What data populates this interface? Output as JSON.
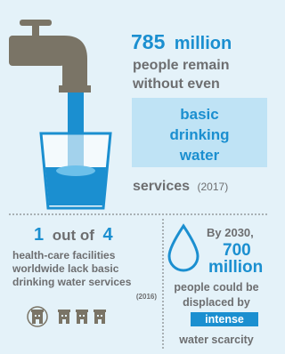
{
  "top": {
    "number": "785",
    "unit": "million",
    "line1": "people remain",
    "line2": "without even",
    "highlight": [
      "basic",
      "drinking",
      "water"
    ],
    "line3": "services",
    "year": "(2017)"
  },
  "left": {
    "count": "1",
    "connector": "out of",
    "total": "4",
    "lines": [
      "health-care facilities",
      "worldwide lack basic",
      "drinking water services"
    ],
    "year": "(2016)"
  },
  "right": {
    "year": "By 2030,",
    "number": "700",
    "unit": "million",
    "lines": [
      "people could be",
      "displaced by"
    ],
    "highlight": "intense",
    "last": "water scarcity"
  }
}
